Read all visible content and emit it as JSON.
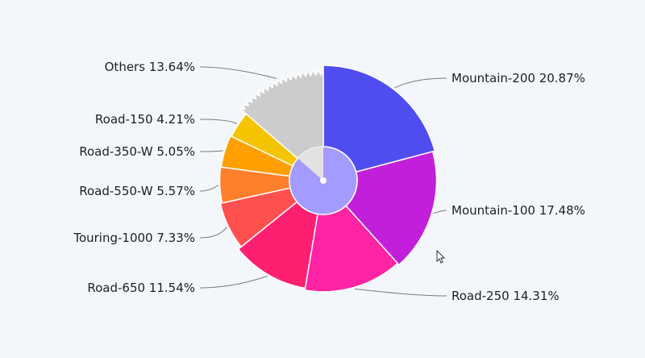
{
  "chart_data": {
    "type": "pie",
    "title": "",
    "series": [
      {
        "categories": [
          "Mountain-200",
          "Mountain-100",
          "Road-250",
          "Road-650",
          "Touring-1000",
          "Road-550-W",
          "Road-350-W",
          "Road-150",
          "Others"
        ],
        "values": [
          20.87,
          17.48,
          14.31,
          11.54,
          7.33,
          5.57,
          5.05,
          4.21,
          13.64
        ],
        "labels": [
          "Mountain-200 20.87%",
          "Mountain-100 17.48%",
          "Road-250 14.31%",
          "Road-650 11.54%",
          "Touring-1000 7.33%",
          "Road-550-W 5.57%",
          "Road-350-W 5.05%",
          "Road-150 4.21%",
          "Others 13.64%"
        ]
      }
    ],
    "colors": [
      "#4f4df0",
      "#c21fdb",
      "#ff24a3",
      "#ff1f71",
      "#ff5050",
      "#ff7f2a",
      "#ffa000",
      "#f5c400",
      "#cccccc"
    ],
    "inner_circle": {
      "color": "#a49bff",
      "others_sliver_color": "#e2e2e2"
    }
  }
}
